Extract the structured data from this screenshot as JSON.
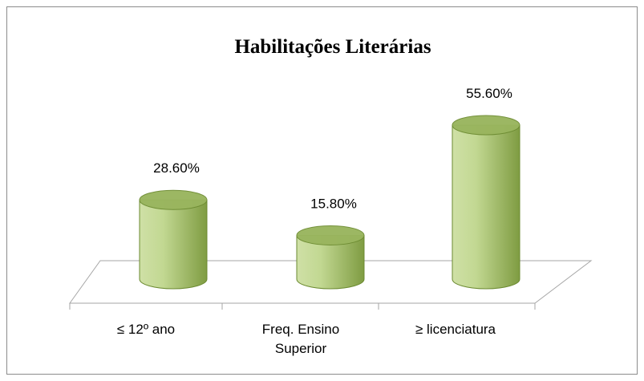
{
  "chart_data": {
    "type": "bar3d",
    "title": "Habilitações Literárias",
    "categories": [
      "≤ 12º ano",
      "Freq. Ensino Superior",
      "≥ licenciatura"
    ],
    "values": [
      28.6,
      15.8,
      55.6
    ],
    "value_labels": [
      "28.60%",
      "15.80%",
      "55.60%"
    ],
    "color": "#a9c46e"
  }
}
